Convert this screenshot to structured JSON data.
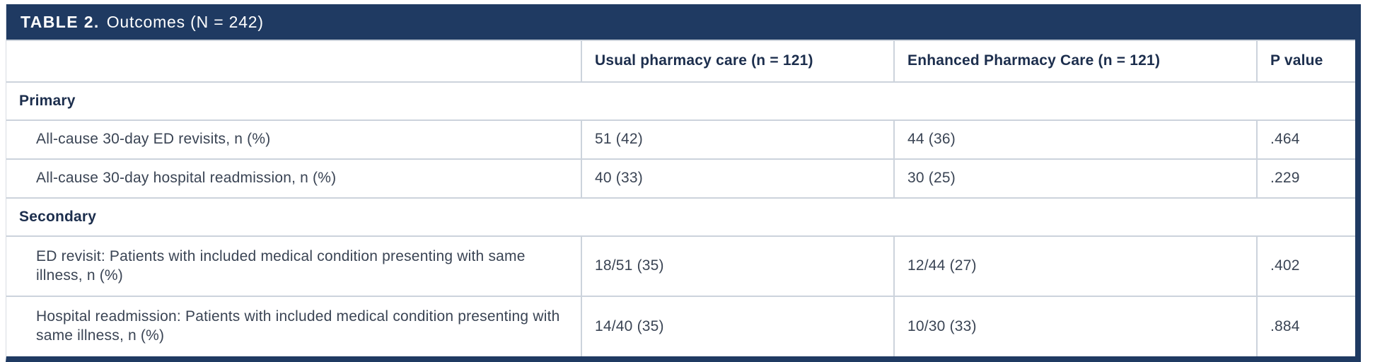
{
  "table": {
    "title_label": "TABLE 2.",
    "title_text": "Outcomes (N = 242)",
    "columns": [
      "Usual pharmacy care (n = 121)",
      "Enhanced Pharmacy Care (n = 121)",
      "P value"
    ],
    "sections": [
      {
        "header": "Primary",
        "rows": [
          {
            "label": "All-cause 30-day ED revisits, n (%)",
            "usual": "51 (42)",
            "enhanced": "44 (36)",
            "p": ".464"
          },
          {
            "label": "All-cause 30-day hospital readmission, n (%)",
            "usual": "40 (33)",
            "enhanced": "30 (25)",
            "p": ".229"
          }
        ]
      },
      {
        "header": "Secondary",
        "rows": [
          {
            "label": "ED revisit: Patients with included medical condition presenting with same illness, n (%)",
            "usual": "18/51 (35)",
            "enhanced": "12/44 (27)",
            "p": ".402"
          },
          {
            "label": "Hospital readmission: Patients with included medical condition presenting with same illness, n (%)",
            "usual": "14/40 (35)",
            "enhanced": "10/30 (33)",
            "p": ".884"
          }
        ]
      }
    ]
  },
  "colors": {
    "navy": "#1f3a62",
    "grid_line": "#ccd3dc",
    "body_text": "#3a4454",
    "header_text": "#1c2e4d",
    "title_text": "#ffffff"
  },
  "chart_data": {
    "type": "table",
    "title": "TABLE 2. Outcomes (N = 242)",
    "columns": [
      "",
      "Usual pharmacy care (n = 121)",
      "Enhanced Pharmacy Care (n = 121)",
      "P value"
    ],
    "rows": [
      [
        "Primary",
        "",
        "",
        ""
      ],
      [
        "All-cause 30-day ED revisits, n (%)",
        "51 (42)",
        "44 (36)",
        ".464"
      ],
      [
        "All-cause 30-day hospital readmission, n (%)",
        "40 (33)",
        "30 (25)",
        ".229"
      ],
      [
        "Secondary",
        "",
        "",
        ""
      ],
      [
        "ED revisit: Patients with included medical condition presenting with same illness, n (%)",
        "18/51 (35)",
        "12/44 (27)",
        ".402"
      ],
      [
        "Hospital readmission: Patients with included medical condition presenting with same illness, n (%)",
        "14/40 (35)",
        "10/30 (33)",
        ".884"
      ]
    ]
  }
}
